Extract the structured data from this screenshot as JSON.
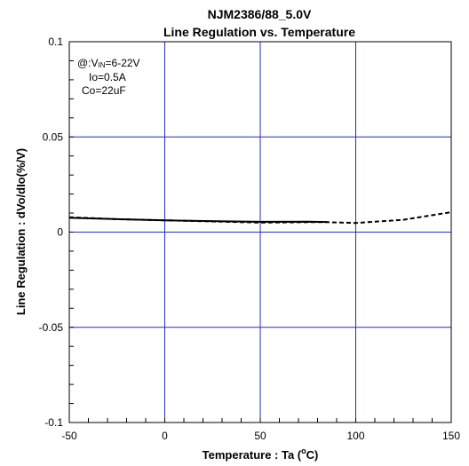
{
  "chart_data": {
    "type": "line",
    "title_line1": "NJM2386/88_5.0V",
    "title_line2": "Line Regulation vs. Temperature",
    "xlabel": "Temperature : Ta (",
    "xlabel_sup": "o",
    "xlabel_tail": "C)",
    "ylabel": "Line Regulation : dVo/dIo(%/V)",
    "xlim": [
      -50,
      150
    ],
    "ylim": [
      -0.1,
      0.1
    ],
    "x_ticks": [
      -50,
      0,
      50,
      100,
      150
    ],
    "x_tick_labels": [
      "-50",
      "0",
      "50",
      "100",
      "150"
    ],
    "y_ticks": [
      -0.1,
      -0.05,
      0,
      0.05,
      0.1
    ],
    "y_tick_labels": [
      "-0.1",
      "-0.05",
      "0",
      "0.05",
      "0.1"
    ],
    "grid": true,
    "annotation": {
      "line1_prefix": "@:V",
      "line1_sub": "IN",
      "line1_suffix": "=6-22V",
      "line2": "Io=0.5A",
      "line3": "Co=22uF"
    },
    "series": [
      {
        "style": "solid",
        "x": [
          -50,
          -25,
          0,
          25,
          50,
          75,
          85
        ],
        "y": [
          0.0075,
          0.0068,
          0.0062,
          0.0058,
          0.0054,
          0.0055,
          0.0053
        ]
      },
      {
        "style": "dashed",
        "x": [
          -50,
          -25,
          0,
          25,
          50,
          75,
          85,
          100,
          125,
          150
        ],
        "y": [
          0.0078,
          0.0068,
          0.0062,
          0.0056,
          0.005,
          0.0052,
          0.0052,
          0.0048,
          0.0065,
          0.0105
        ]
      }
    ]
  }
}
